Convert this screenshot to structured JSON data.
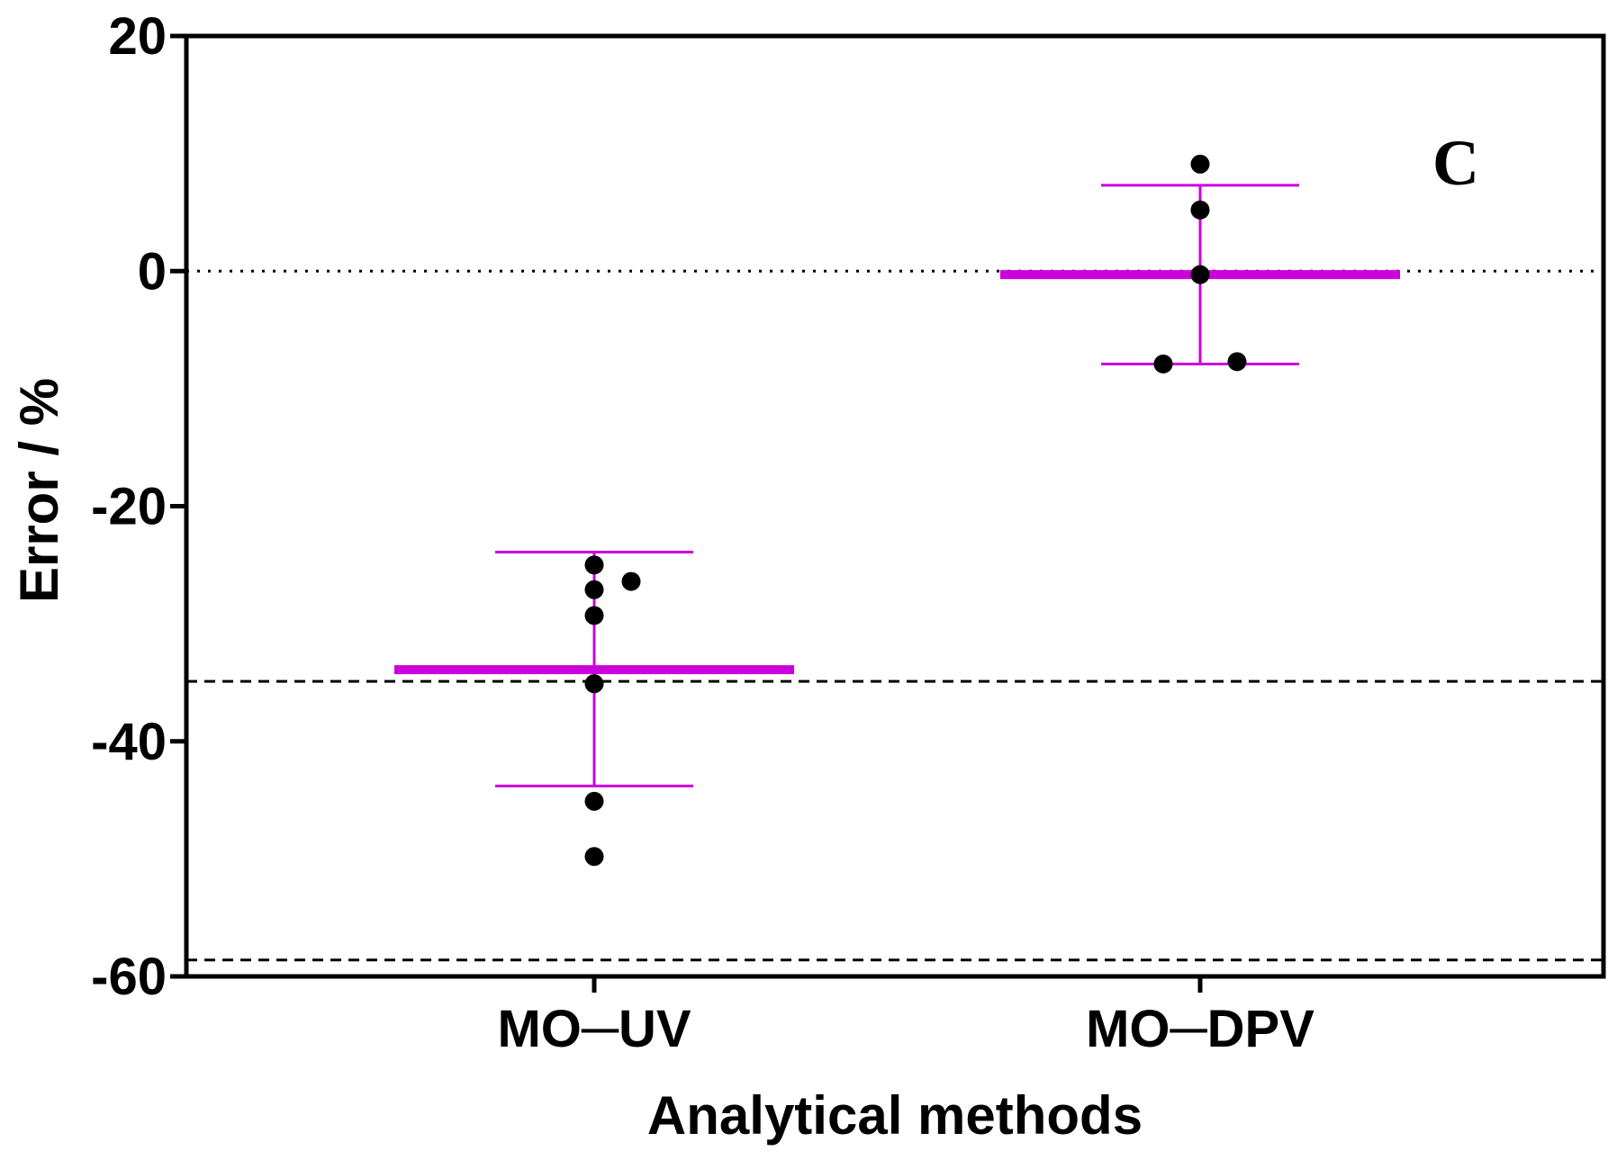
{
  "chart_data": {
    "type": "scatter",
    "title": "",
    "panel_label": "C",
    "xlabel": "Analytical methods",
    "ylabel": "Error / %",
    "categories": [
      "MO─UV",
      "MO─DPV"
    ],
    "ylim": [
      -60,
      20
    ],
    "yticks": [
      20,
      0,
      -20,
      -40,
      -60
    ],
    "grid": false,
    "series": [
      {
        "name": "MO─UV",
        "points": [
          -25,
          -26.4,
          -27.1,
          -29.3,
          -35.1,
          -45.1,
          -49.8
        ],
        "mean": -33.9,
        "sd_upper": -23.9,
        "sd_lower": -43.8,
        "color": "#cc00dd"
      },
      {
        "name": "MO─DPV",
        "points": [
          9.1,
          5.2,
          -0.3,
          -7.7,
          -7.9
        ],
        "mean": -0.3,
        "sd_upper": 7.3,
        "sd_lower": -7.9,
        "color": "#cc00dd"
      }
    ],
    "reference_lines": [
      {
        "style": "dotted",
        "value": 0
      },
      {
        "style": "dashed",
        "value": -34.9
      },
      {
        "style": "dashed",
        "value": -58.6
      }
    ],
    "point_color": "#000000",
    "axis_color": "#000000"
  }
}
